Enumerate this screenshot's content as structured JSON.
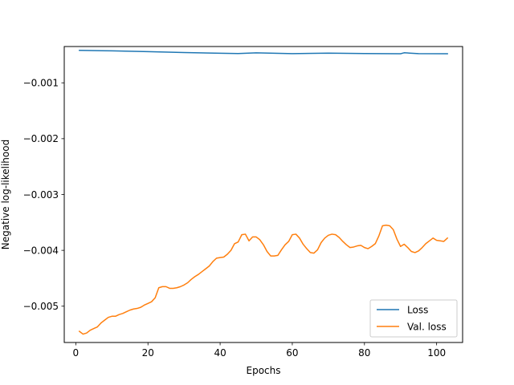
{
  "chart_data": {
    "type": "line",
    "title": "",
    "xlabel": "Epochs",
    "ylabel": "Negative log-likelihood",
    "xlim": [
      -3.2,
      107.2
    ],
    "ylim": [
      -0.00565,
      -0.00035
    ],
    "xticks": [
      0,
      20,
      40,
      60,
      80,
      100
    ],
    "xtick_labels": [
      "0",
      "20",
      "40",
      "60",
      "80",
      "100"
    ],
    "yticks": [
      -0.001,
      -0.002,
      -0.003,
      -0.004,
      -0.005
    ],
    "ytick_labels": [
      "−0.001",
      "−0.002",
      "−0.003",
      "−0.004",
      "−0.005"
    ],
    "grid": false,
    "legend_position": "lower-right",
    "series": [
      {
        "name": "Loss",
        "color": "#1f77b4",
        "x": [
          1,
          10,
          20,
          30,
          40,
          45,
          50,
          60,
          70,
          80,
          90,
          91,
          95,
          103
        ],
        "y": [
          -0.000419,
          -0.000427,
          -0.000441,
          -0.000458,
          -0.000471,
          -0.000476,
          -0.000463,
          -0.000477,
          -0.000468,
          -0.000475,
          -0.000479,
          -0.000462,
          -0.000477,
          -0.00048
        ]
      },
      {
        "name": "Val. loss",
        "color": "#ff7f0e",
        "x": [
          1,
          2,
          3,
          4,
          5,
          6,
          7,
          8,
          9,
          10,
          11,
          12,
          13,
          14,
          15,
          16,
          17,
          18,
          19,
          20,
          21,
          22,
          23,
          24,
          25,
          26,
          27,
          28,
          29,
          30,
          31,
          32,
          33,
          34,
          35,
          36,
          37,
          38,
          39,
          40,
          41,
          42,
          43,
          44,
          45,
          46,
          47,
          48,
          49,
          50,
          51,
          52,
          53,
          54,
          55,
          56,
          57,
          58,
          59,
          60,
          61,
          62,
          63,
          64,
          65,
          66,
          67,
          68,
          69,
          70,
          71,
          72,
          73,
          74,
          75,
          76,
          77,
          78,
          79,
          80,
          81,
          82,
          83,
          84,
          85,
          86,
          87,
          88,
          89,
          90,
          91,
          92,
          93,
          94,
          95,
          96,
          97,
          98,
          99,
          100,
          101,
          102,
          103
        ],
        "y": [
          -0.00545,
          -0.0055,
          -0.00548,
          -0.00543,
          -0.0054,
          -0.00537,
          -0.0053,
          -0.00525,
          -0.0052,
          -0.00518,
          -0.00518,
          -0.00515,
          -0.00513,
          -0.0051,
          -0.00507,
          -0.00505,
          -0.00504,
          -0.00502,
          -0.00498,
          -0.00495,
          -0.00492,
          -0.00485,
          -0.00467,
          -0.00465,
          -0.00465,
          -0.00468,
          -0.00468,
          -0.00467,
          -0.00465,
          -0.00462,
          -0.00458,
          -0.00452,
          -0.00447,
          -0.00443,
          -0.00438,
          -0.00433,
          -0.00428,
          -0.0042,
          -0.00414,
          -0.00413,
          -0.00412,
          -0.00407,
          -0.004,
          -0.00388,
          -0.00385,
          -0.00372,
          -0.00371,
          -0.00383,
          -0.00376,
          -0.00376,
          -0.00381,
          -0.0039,
          -0.00402,
          -0.0041,
          -0.0041,
          -0.00409,
          -0.00399,
          -0.0039,
          -0.00384,
          -0.00372,
          -0.00371,
          -0.00378,
          -0.00389,
          -0.00397,
          -0.00404,
          -0.00405,
          -0.00399,
          -0.00386,
          -0.00378,
          -0.00373,
          -0.00371,
          -0.00372,
          -0.00377,
          -0.00384,
          -0.0039,
          -0.00395,
          -0.00394,
          -0.00392,
          -0.00391,
          -0.00395,
          -0.00397,
          -0.00393,
          -0.00388,
          -0.00374,
          -0.00356,
          -0.00355,
          -0.00356,
          -0.00363,
          -0.0038,
          -0.00393,
          -0.00389,
          -0.00395,
          -0.00402,
          -0.00404,
          -0.00401,
          -0.00395,
          -0.00388,
          -0.00383,
          -0.00378,
          -0.00382,
          -0.00383,
          -0.00384,
          -0.00378
        ]
      }
    ]
  }
}
